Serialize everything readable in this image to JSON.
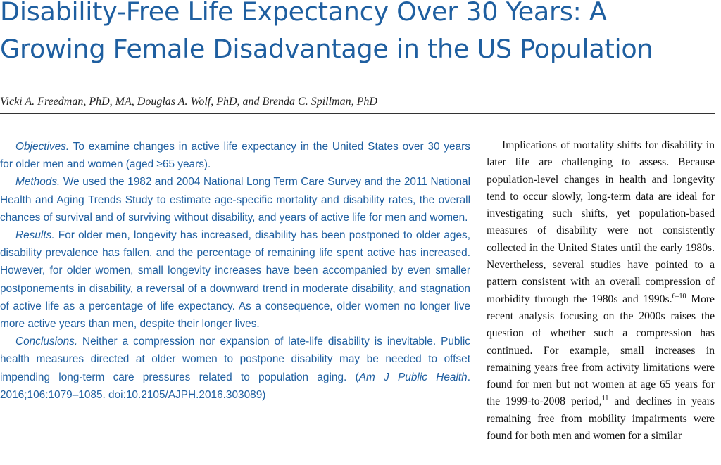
{
  "title_lines": [
    "Disability-Free Life Expectancy Over 30 Years: A",
    "Growing Female Disadvantage in the US Population"
  ],
  "authors": "Vicki A. Freedman, PhD, MA, Douglas A. Wolf, PhD, and Brenda C. Spillman, PhD",
  "abstract": {
    "objectives": {
      "head": "Objectives.",
      "text": " To examine changes in active life expectancy in the United States over 30 years for older men and women (aged ≥65 years)."
    },
    "methods": {
      "head": "Methods.",
      "text": " We used the 1982 and 2004 National Long Term Care Survey and the 2011 National Health and Aging Trends Study to estimate age-specific mortality and disability rates, the overall chances of survival and of surviving without disability, and years of active life for men and women."
    },
    "results": {
      "head": "Results.",
      "text": " For older men, longevity has increased, disability has been postponed to older ages, disability prevalence has fallen, and the percentage of remaining life spent active has increased. However, for older women, small longevity increases have been accompanied by even smaller postponements in disability, a reversal of a downward trend in moderate disability, and stagnation of active life as a percentage of life expectancy. As a consequence, older women no longer live more active years than men, despite their longer lives."
    },
    "conclusions": {
      "head": "Conclusions.",
      "text": " Neither a compression nor expansion of late-life disability is inevitable. Public health measures directed at older women to postpone disability may be needed to offset impending long-term care pressures related to population aging. (",
      "citation_journal": "Am J Public Health",
      "citation_rest": ". 2016;106:1079–1085. doi:10.2105/AJPH.2016.303089)"
    }
  },
  "body": {
    "part1": "Implications of mortality shifts for disability in later life are challenging to assess. Because population-level changes in health and longevity tend to occur slowly, long-term data are ideal for investigating such shifts, yet population-based measures of disability were not consistently collected in the United States until the early 1980s. Nevertheless, several studies have pointed to a pattern consistent with an overall compression of morbidity through the 1980s and 1990s.",
    "ref1": "6–10",
    "part2": " More recent analysis focusing on the 2000s raises the question of whether such a compression has continued. For example, small increases in remaining years free from activity limitations were found for men but not women at age 65 years for the 1999-to-2008 period,",
    "ref2": "11",
    "part3": " and declines in years remaining free from mobility impairments were found for both men and women for a similar"
  },
  "colors": {
    "title": "#1f5fa0",
    "abstract_text": "#1f5fa0",
    "body_text": "#111111"
  }
}
